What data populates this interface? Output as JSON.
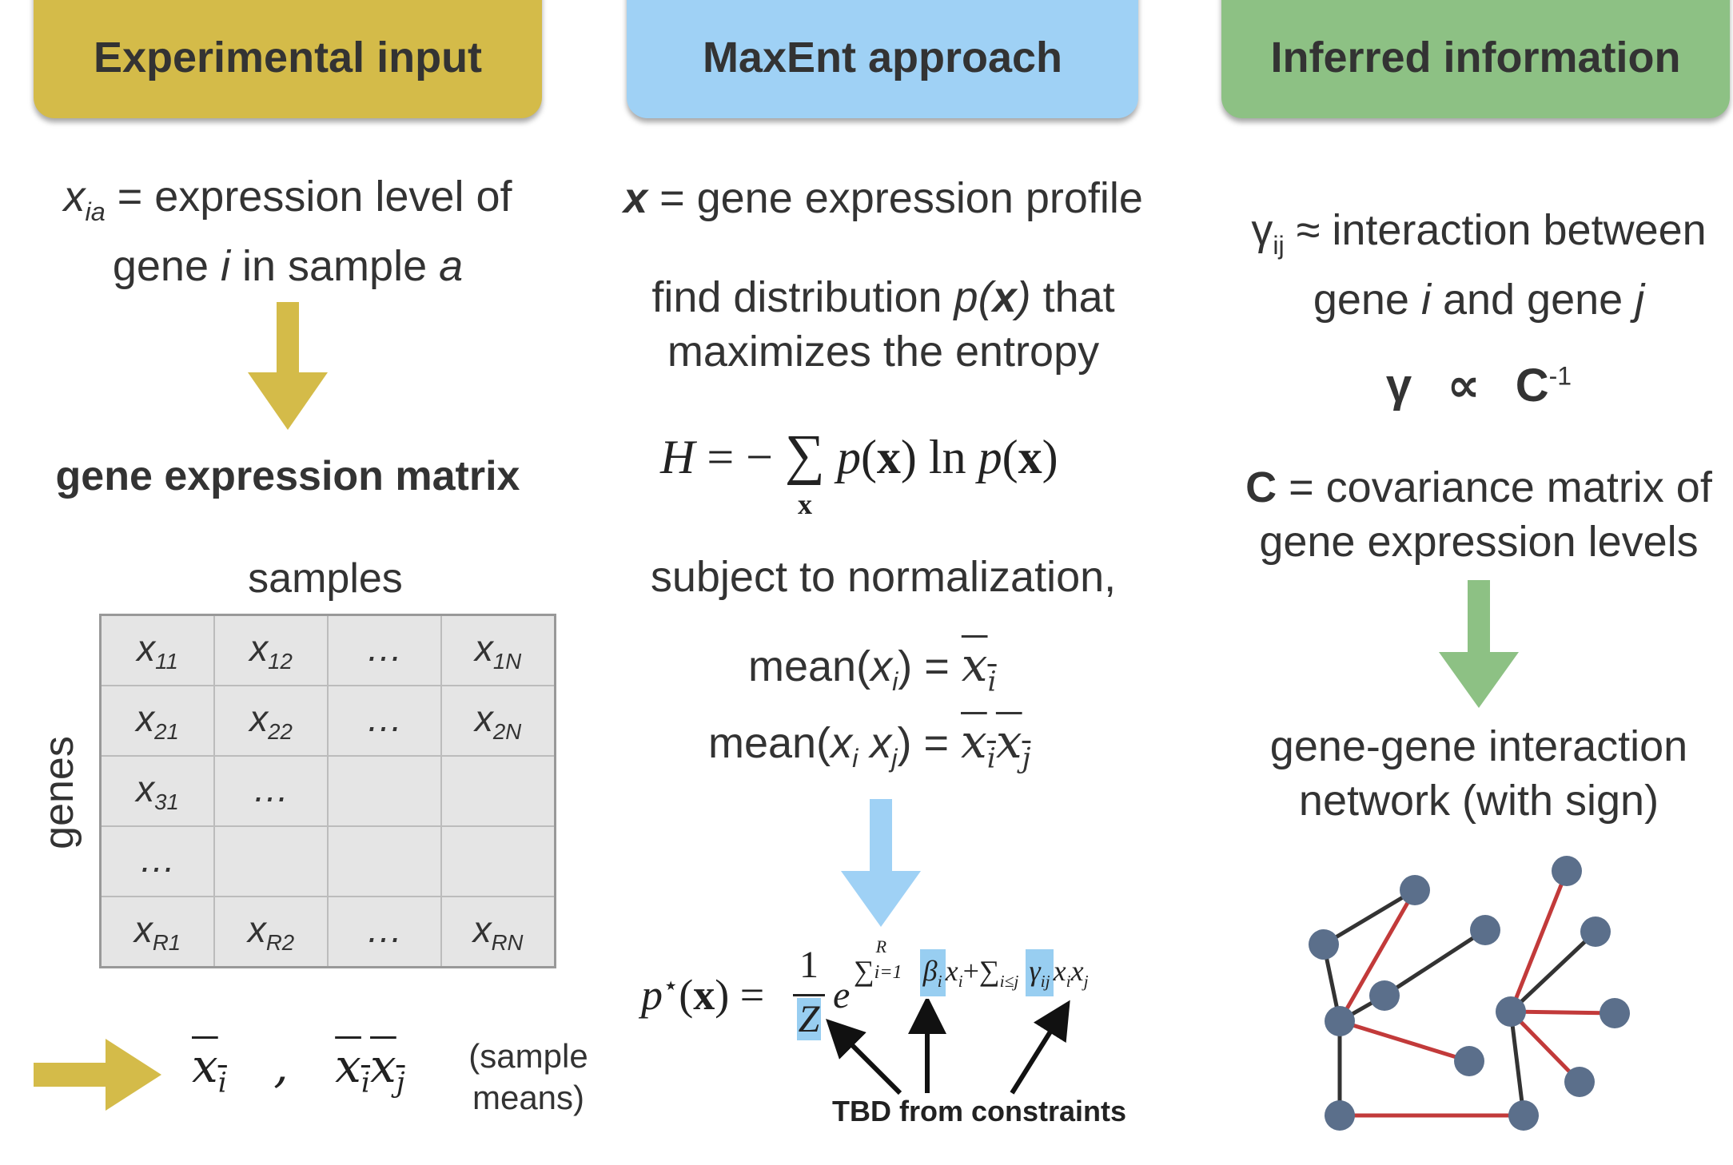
{
  "headers": {
    "experimental": {
      "label": "Experimental input",
      "color": "#d4bb49"
    },
    "maxent": {
      "label": "MaxEnt approach",
      "color": "#9fd1f5"
    },
    "inferred": {
      "label": "Inferred information",
      "color": "#8dc184"
    }
  },
  "left": {
    "def_var": "x",
    "def_sub": "ia",
    "def_line1": " = expression level of",
    "def_line2_a": "gene ",
    "def_line2_i": "i",
    "def_line2_b": " in sample ",
    "def_line2_a2": "a",
    "matrix_title": "gene expression matrix",
    "col_label": "samples",
    "row_label": "genes",
    "matrix_rows": [
      [
        "x",
        "11",
        "x",
        "12",
        "…",
        "",
        "x",
        "1N"
      ],
      [
        "x",
        "21",
        "x",
        "22",
        "…",
        "",
        "x",
        "2N"
      ],
      [
        "x",
        "31",
        "…",
        "",
        "",
        "",
        "",
        ""
      ],
      [
        "…",
        "",
        "",
        "",
        "",
        "",
        "",
        ""
      ],
      [
        "x",
        "R1",
        "x",
        "R2",
        "…",
        "",
        "x",
        "RN"
      ]
    ],
    "means_xi": "x",
    "means_xi_sub": "i",
    "means_comma": ",",
    "means_xixj_1": "x",
    "means_xixj_1_sub": "i",
    "means_xixj_2": "x",
    "means_xixj_2_sub": "j",
    "sample_means_1": "(sample",
    "sample_means_2": "means)"
  },
  "middle": {
    "profile_var": "x",
    "profile_text": " = gene expression profile",
    "find_1a": "find distribution ",
    "find_1p": "p(",
    "find_1x": "x",
    "find_1c": ")",
    "find_1b": " that",
    "find_2": "maximizes the entropy",
    "entropy_H": "H",
    "entropy_eq": " = −",
    "entropy_sum": "∑",
    "entropy_sum_sub": "x",
    "entropy_p1": "p",
    "entropy_x1": "x",
    "entropy_ln": " ln ",
    "entropy_p2": "p",
    "entropy_x2": "x",
    "subject": "subject to normalization,",
    "mean1_label": "mean(",
    "mean1_var": "x",
    "mean1_sub": "i",
    "mean1_close": ") = ",
    "mean1_rhs": "x",
    "mean1_rhs_sub": "i",
    "mean2_label": "mean(",
    "mean2_var1": "x",
    "mean2_sub1": "i",
    "mean2_var2": " x",
    "mean2_sub2": "j",
    "mean2_close": ") = ",
    "mean2_rhs1": "x",
    "mean2_rhs1_sub": "i",
    "mean2_rhs2": "x",
    "mean2_rhs2_sub": "j",
    "pstar_p": "p",
    "pstar_star": "⋆",
    "pstar_x": "x",
    "pstar_eq": " = ",
    "pstar_num": "1",
    "pstar_Z": "Z",
    "pstar_e": "e",
    "pstar_sum1": "∑",
    "pstar_sum1_sub": "i=1",
    "pstar_sum1_sup": "R",
    "pstar_beta": "β",
    "pstar_beta_sub": "i",
    "pstar_xi": "x",
    "pstar_xi_sub": "i",
    "pstar_plus": "+",
    "pstar_sum2": "∑",
    "pstar_sum2_sub": "i≤j",
    "pstar_gamma": "γ",
    "pstar_gamma_sub": "ij",
    "pstar_x1": "x",
    "pstar_x1_sub": "i",
    "pstar_x2": "x",
    "pstar_x2_sub": "j",
    "tbd": "TBD from constraints"
  },
  "right": {
    "gamma_sym": "γ",
    "gamma_sub": "ij",
    "gamma_text": " ≈ interaction between",
    "gamma_line2a": "gene ",
    "gamma_line2i": "i",
    "gamma_line2b": " and gene ",
    "gamma_line2j": "j",
    "prop_gamma": "γ",
    "prop_sym": "∝",
    "prop_C": "C",
    "prop_sup": "-1",
    "cov_C": "C",
    "cov_line1": " = covariance matrix of",
    "cov_line2": "gene expression levels",
    "network_1": "gene-gene interaction",
    "network_2": "network (with sign)"
  },
  "colors": {
    "arrow_gold": "#d4bb49",
    "arrow_blue": "#9fd1f5",
    "arrow_green": "#8dc184",
    "node": "#5b6f8b",
    "edge_black": "#333333",
    "edge_red": "#c23a3a",
    "highlight": "#98cef1"
  }
}
